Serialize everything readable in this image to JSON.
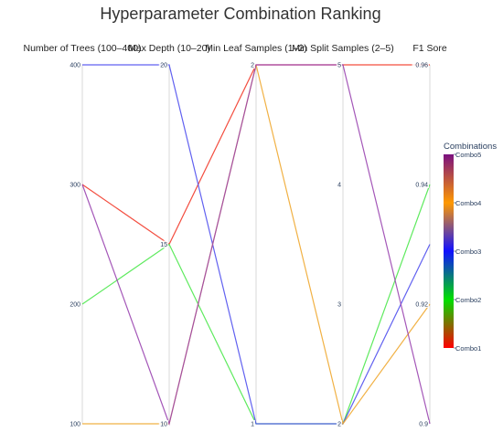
{
  "chart_data": {
    "type": "parallel_coordinates",
    "title": "Hyperparameter Combination Ranking",
    "dimensions": [
      {
        "key": "trees",
        "label": "Number of Trees (100–400)",
        "range": [
          100,
          400
        ],
        "ticks": [
          100,
          200,
          300,
          400
        ]
      },
      {
        "key": "depth",
        "label": "Max Depth  (10–20)",
        "range": [
          10,
          20
        ],
        "ticks": [
          10,
          15,
          20
        ]
      },
      {
        "key": "leaf",
        "label": "Min Leaf Samples (1–2)",
        "range": [
          1,
          2
        ],
        "ticks": [
          1,
          2
        ]
      },
      {
        "key": "split",
        "label": "Min Split Samples (2–5)",
        "range": [
          2,
          5
        ],
        "ticks": [
          2,
          3,
          4,
          5
        ]
      },
      {
        "key": "f1",
        "label": "F1 Sore",
        "range": [
          0.9,
          0.96
        ],
        "ticks": [
          0.9,
          0.92,
          0.94,
          0.96
        ]
      }
    ],
    "series": [
      {
        "name": "Combo1",
        "color": "#f23a2a",
        "values": {
          "trees": 300,
          "depth": 15,
          "leaf": 2,
          "split": 5,
          "f1": 0.96
        }
      },
      {
        "name": "Combo2",
        "color": "#4ce84c",
        "values": {
          "trees": 200,
          "depth": 15,
          "leaf": 1,
          "split": 2,
          "f1": 0.94
        }
      },
      {
        "name": "Combo3",
        "color": "#5050ee",
        "values": {
          "trees": 400,
          "depth": 20,
          "leaf": 1,
          "split": 2,
          "f1": 0.93
        }
      },
      {
        "name": "Combo4",
        "color": "#f0a830",
        "values": {
          "trees": 100,
          "depth": 10,
          "leaf": 2,
          "split": 2,
          "f1": 0.92
        }
      },
      {
        "name": "Combo5",
        "color": "#9a45b0",
        "values": {
          "trees": 300,
          "depth": 10,
          "leaf": 2,
          "split": 5,
          "f1": 0.9
        }
      }
    ],
    "colorbar": {
      "title": "Combinations",
      "labels": [
        "Combo1",
        "Combo2",
        "Combo3",
        "Combo4",
        "Combo5"
      ],
      "stops": [
        "#ff0000",
        "#00e000",
        "#1010ff",
        "#ff9900",
        "#7a1080"
      ]
    }
  }
}
